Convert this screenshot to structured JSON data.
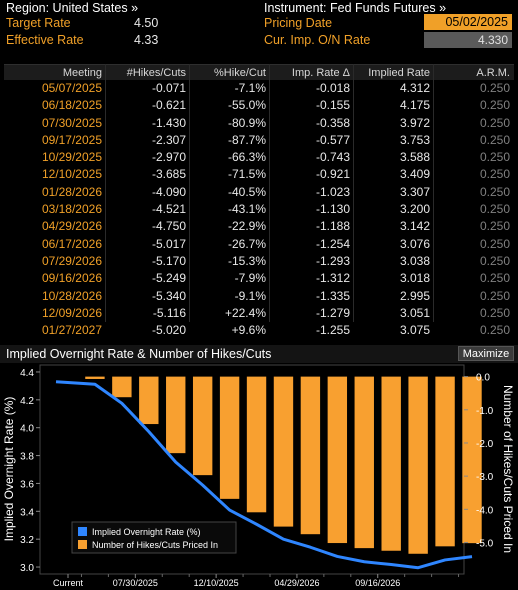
{
  "header": {
    "region_label": "Region: United States »",
    "instrument_label": "Instrument: Fed Funds Futures »",
    "target_rate_label": "Target Rate",
    "target_rate_value": "4.50",
    "effective_rate_label": "Effective Rate",
    "effective_rate_value": "4.33",
    "pricing_date_label": "Pricing Date",
    "pricing_date_value": "05/02/2025",
    "cur_imp_label": "Cur. Imp. O/N Rate",
    "cur_imp_value": "4.330"
  },
  "table": {
    "columns": [
      "Meeting",
      "#Hikes/Cuts",
      "%Hike/Cut",
      "Imp. Rate Δ",
      "Implied Rate",
      "A.R.M."
    ],
    "rows": [
      [
        "05/07/2025",
        "-0.071",
        "-7.1%",
        "-0.018",
        "4.312",
        "0.250"
      ],
      [
        "06/18/2025",
        "-0.621",
        "-55.0%",
        "-0.155",
        "4.175",
        "0.250"
      ],
      [
        "07/30/2025",
        "-1.430",
        "-80.9%",
        "-0.358",
        "3.972",
        "0.250"
      ],
      [
        "09/17/2025",
        "-2.307",
        "-87.7%",
        "-0.577",
        "3.753",
        "0.250"
      ],
      [
        "10/29/2025",
        "-2.970",
        "-66.3%",
        "-0.743",
        "3.588",
        "0.250"
      ],
      [
        "12/10/2025",
        "-3.685",
        "-71.5%",
        "-0.921",
        "3.409",
        "0.250"
      ],
      [
        "01/28/2026",
        "-4.090",
        "-40.5%",
        "-1.023",
        "3.307",
        "0.250"
      ],
      [
        "03/18/2026",
        "-4.521",
        "-43.1%",
        "-1.130",
        "3.200",
        "0.250"
      ],
      [
        "04/29/2026",
        "-4.750",
        "-22.9%",
        "-1.188",
        "3.142",
        "0.250"
      ],
      [
        "06/17/2026",
        "-5.017",
        "-26.7%",
        "-1.254",
        "3.076",
        "0.250"
      ],
      [
        "07/29/2026",
        "-5.170",
        "-15.3%",
        "-1.293",
        "3.038",
        "0.250"
      ],
      [
        "09/16/2026",
        "-5.249",
        "-7.9%",
        "-1.312",
        "3.018",
        "0.250"
      ],
      [
        "10/28/2026",
        "-5.340",
        "-9.1%",
        "-1.335",
        "2.995",
        "0.250"
      ],
      [
        "12/09/2026",
        "-5.116",
        "+22.4%",
        "-1.279",
        "3.051",
        "0.250"
      ],
      [
        "01/27/2027",
        "-5.020",
        "+9.6%",
        "-1.255",
        "3.075",
        "0.250"
      ]
    ]
  },
  "chart_panel": {
    "title": "Implied Overnight Rate & Number of Hikes/Cuts",
    "maximize_label": "Maximize"
  },
  "colors": {
    "accent_orange": "#f0a028",
    "line_blue": "#2f86ff",
    "bar_orange": "#f8a030"
  },
  "chart_data": {
    "type": "bar",
    "title": "",
    "x_tick_labels": [
      "Current",
      "07/30/2025",
      "12/10/2025",
      "04/29/2026",
      "09/16/2026"
    ],
    "categories": [
      "Current",
      "05/07/2025",
      "06/18/2025",
      "07/30/2025",
      "09/17/2025",
      "10/29/2025",
      "12/10/2025",
      "01/28/2026",
      "03/18/2026",
      "04/29/2026",
      "06/17/2026",
      "07/29/2026",
      "09/16/2026",
      "10/28/2026",
      "12/09/2026",
      "01/27/2027"
    ],
    "left_axis": {
      "label": "Implied Overnight Rate (%)",
      "ylim": [
        2.95,
        4.45
      ],
      "ticks": [
        "3.0",
        "3.2",
        "3.4",
        "3.6",
        "3.8",
        "4.0",
        "4.2",
        "4.4"
      ]
    },
    "right_axis": {
      "label": "Number of Hikes/Cuts Priced In",
      "ylim": [
        -5.95,
        0.35
      ],
      "ticks": [
        "0.0",
        "-1.0",
        "-2.0",
        "-3.0",
        "-4.0",
        "-5.0"
      ]
    },
    "series": [
      {
        "name": "Implied Overnight Rate (%)",
        "type": "line",
        "axis": "left",
        "values": [
          4.33,
          4.312,
          4.175,
          3.972,
          3.753,
          3.588,
          3.409,
          3.307,
          3.2,
          3.142,
          3.076,
          3.038,
          3.018,
          2.995,
          3.051,
          3.075
        ]
      },
      {
        "name": "Number of Hikes/Cuts Priced In",
        "type": "bar",
        "axis": "right",
        "values": [
          null,
          -0.071,
          -0.621,
          -1.43,
          -2.307,
          -2.97,
          -3.685,
          -4.09,
          -4.521,
          -4.75,
          -5.017,
          -5.17,
          -5.249,
          -5.34,
          -5.116,
          -5.02
        ]
      }
    ],
    "legend_position": "bottom-left",
    "grid": false
  }
}
